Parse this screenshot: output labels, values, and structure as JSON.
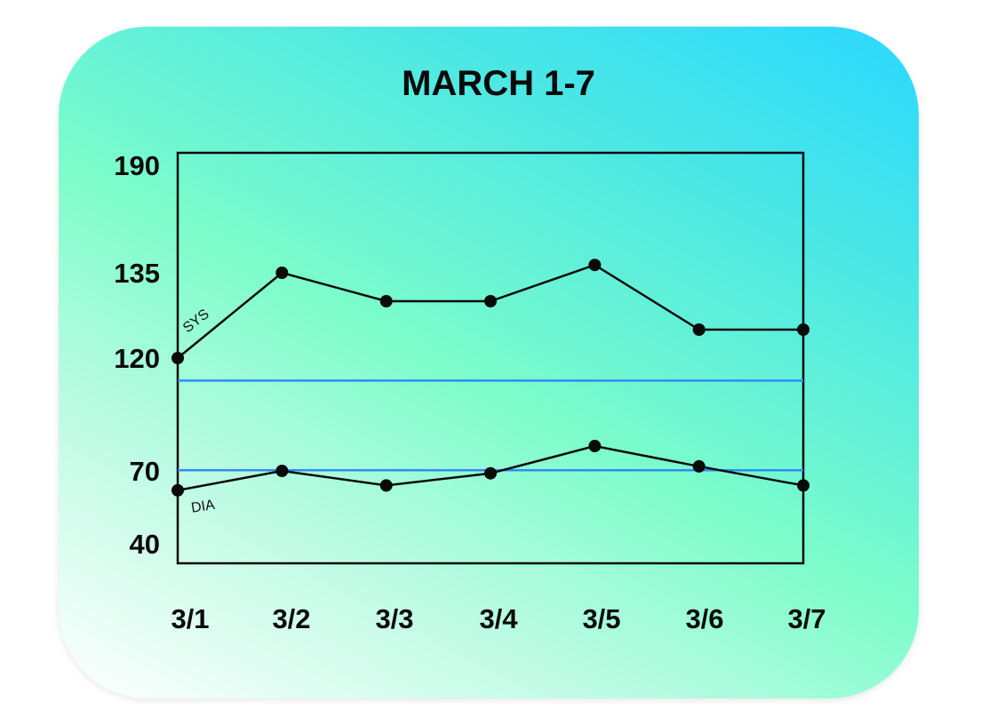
{
  "chart_data": {
    "type": "line",
    "title": "MARCH 1-7",
    "categories": [
      "3/1",
      "3/2",
      "3/3",
      "3/4",
      "3/5",
      "3/6",
      "3/7"
    ],
    "y_ticks": [
      "190",
      "135",
      "120",
      "70",
      "40"
    ],
    "series": [
      {
        "name": "SYS",
        "values": [
          120,
          135,
          130,
          130,
          139,
          125,
          125
        ]
      },
      {
        "name": "DIA",
        "values": [
          62,
          70,
          64,
          69,
          81,
          72,
          64
        ]
      }
    ],
    "reference_lines": [
      {
        "value": 110,
        "color": "#2f8cf5"
      },
      {
        "value": 70.3,
        "color": "#2f8cf5"
      }
    ],
    "line_color": "#0a0a0a",
    "grid": false,
    "legend": "none"
  }
}
